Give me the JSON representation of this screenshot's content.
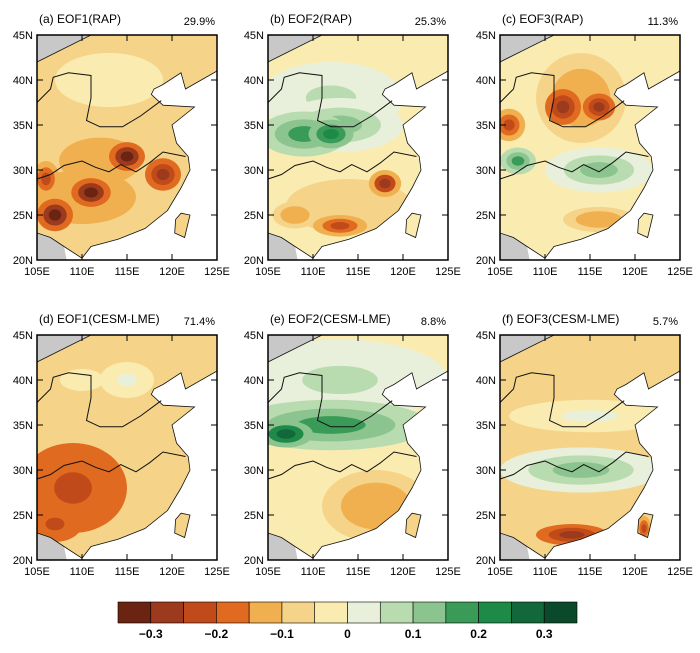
{
  "colorbar": {
    "colors": [
      "#6b2412",
      "#9c3a1e",
      "#c04a1a",
      "#e06a20",
      "#f0b050",
      "#f5d48a",
      "#faecb0",
      "#e8f0dc",
      "#b8dcb0",
      "#8cc490",
      "#3a9a58",
      "#1e8a48",
      "#12683a",
      "#0a4a2a"
    ],
    "min": -0.35,
    "max": 0.35,
    "tick_values": [
      -0.3,
      -0.2,
      -0.1,
      0,
      0.1,
      0.2,
      0.3
    ],
    "tick_labels": [
      "−0.3",
      "−0.2",
      "−0.1",
      "0",
      "0.1",
      "0.2",
      "0.3"
    ]
  },
  "axes": {
    "lat_labels": [
      "45N",
      "40N",
      "35N",
      "30N",
      "25N",
      "20N"
    ],
    "lon_labels": [
      "105E",
      "110E",
      "115E",
      "120E",
      "125E"
    ],
    "lon_range": [
      105,
      125
    ],
    "lat_range": [
      20,
      45
    ]
  },
  "panels": [
    {
      "title": "(a) EOF1(RAP)",
      "percent": "29.9%",
      "base": -0.06,
      "blobs": [
        [
          112,
          31,
          -0.13,
          7,
          4
        ],
        [
          110,
          27,
          -0.15,
          6,
          3
        ],
        [
          106,
          29,
          -0.2,
          1.5,
          2
        ],
        [
          107,
          25,
          -0.32,
          2,
          1.8
        ],
        [
          111,
          27.5,
          -0.3,
          2.2,
          1.6
        ],
        [
          115,
          31.5,
          -0.3,
          2,
          1.6
        ],
        [
          119,
          29.5,
          -0.27,
          2,
          1.8
        ],
        [
          113,
          40,
          -0.03,
          6,
          3
        ]
      ]
    },
    {
      "title": "(b) EOF2(RAP)",
      "percent": "25.3%",
      "base": -0.03,
      "blobs": [
        [
          112,
          38,
          0.06,
          8,
          4
        ],
        [
          113,
          35,
          0.1,
          7,
          3
        ],
        [
          109,
          34,
          0.15,
          5,
          2.5
        ],
        [
          112,
          34,
          0.23,
          2.5,
          1.6
        ],
        [
          114,
          26,
          -0.1,
          7,
          3
        ],
        [
          108,
          25,
          -0.15,
          2.5,
          1.5
        ],
        [
          113,
          23.8,
          -0.22,
          3,
          1.2
        ],
        [
          118,
          28.5,
          -0.25,
          1.8,
          1.5
        ]
      ]
    },
    {
      "title": "(c) EOF3(RAP)",
      "percent": "11.3%",
      "base": -0.05,
      "blobs": [
        [
          114,
          38,
          -0.14,
          5,
          5
        ],
        [
          112,
          37,
          -0.25,
          2,
          2
        ],
        [
          116,
          37,
          -0.27,
          1.8,
          1.5
        ],
        [
          106,
          35,
          -0.22,
          1.8,
          1.8
        ],
        [
          116,
          30,
          0.12,
          6,
          2.5
        ],
        [
          107,
          31,
          0.15,
          2,
          1.5
        ],
        [
          116,
          24.5,
          -0.15,
          4,
          1.4
        ]
      ]
    },
    {
      "title": "(d) EOF1(CESM-LME)",
      "percent": "71.4%",
      "base": -0.1,
      "blobs": [
        [
          110,
          40,
          -0.05,
          7,
          3.5
        ],
        [
          115,
          40,
          0.02,
          3,
          2
        ],
        [
          109,
          28,
          -0.2,
          6,
          5
        ],
        [
          107,
          24,
          -0.22,
          3,
          2
        ]
      ]
    },
    {
      "title": "(e) EOF2(CESM-LME)",
      "percent": "8.8%",
      "base": -0.05,
      "blobs": [
        [
          113,
          40,
          0.06,
          12,
          4.5
        ],
        [
          112,
          35,
          0.18,
          11,
          2.8
        ],
        [
          107,
          34,
          0.27,
          3,
          1.5
        ],
        [
          112,
          30,
          -0.02,
          9,
          2
        ],
        [
          117,
          26,
          -0.13,
          6,
          4
        ],
        [
          121,
          23.5,
          -0.1,
          1,
          1.5
        ]
      ]
    },
    {
      "title": "(f) EOF3(CESM-LME)",
      "percent": "5.7%",
      "base": -0.07,
      "blobs": [
        [
          113,
          40,
          -0.1,
          11,
          3
        ],
        [
          115,
          36,
          0.0,
          9,
          1.8
        ],
        [
          114,
          30,
          0.12,
          9,
          2.5
        ],
        [
          113,
          22.8,
          -0.27,
          4,
          1.2
        ],
        [
          121,
          23.5,
          -0.22,
          0.8,
          1.4
        ]
      ]
    }
  ]
}
